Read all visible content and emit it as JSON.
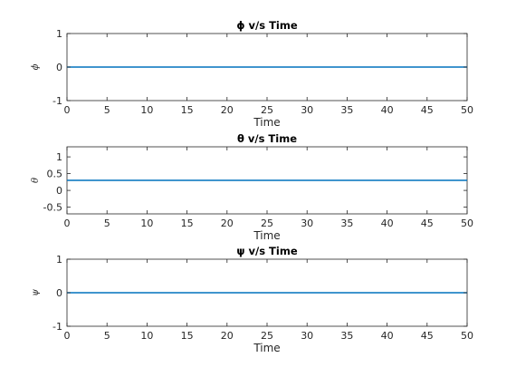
{
  "chart_data": [
    {
      "type": "line",
      "title": "ϕ v/s Time",
      "xlabel": "Time",
      "ylabel": "ϕ",
      "xlim": [
        0,
        50
      ],
      "ylim": [
        -1,
        1
      ],
      "xticks": [
        0,
        5,
        10,
        15,
        20,
        25,
        30,
        35,
        40,
        45,
        50
      ],
      "xtick_labels": [
        "0",
        "5",
        "10",
        "15",
        "20",
        "25",
        "30",
        "35",
        "40",
        "45",
        "50"
      ],
      "yticks": [
        -1,
        0,
        1
      ],
      "ytick_labels": [
        "-1",
        "0",
        "1"
      ],
      "grid": false,
      "series": [
        {
          "color": "#0072bd",
          "x": [
            0,
            50
          ],
          "y": [
            0,
            0
          ]
        }
      ]
    },
    {
      "type": "line",
      "title": "θ v/s Time",
      "xlabel": "Time",
      "ylabel": "θ",
      "xlim": [
        0,
        50
      ],
      "ylim": [
        -0.7,
        1.3
      ],
      "xticks": [
        0,
        5,
        10,
        15,
        20,
        25,
        30,
        35,
        40,
        45,
        50
      ],
      "xtick_labels": [
        "0",
        "5",
        "10",
        "15",
        "20",
        "25",
        "30",
        "35",
        "40",
        "45",
        "50"
      ],
      "yticks": [
        -0.5,
        0,
        0.5,
        1
      ],
      "ytick_labels": [
        "-0.5",
        "0",
        "0.5",
        "1"
      ],
      "grid": false,
      "series": [
        {
          "color": "#0072bd",
          "x": [
            0,
            50
          ],
          "y": [
            0.3,
            0.3
          ]
        }
      ]
    },
    {
      "type": "line",
      "title": "ψ v/s Time",
      "xlabel": "Time",
      "ylabel": "ψ",
      "xlim": [
        0,
        50
      ],
      "ylim": [
        -1,
        1
      ],
      "xticks": [
        0,
        5,
        10,
        15,
        20,
        25,
        30,
        35,
        40,
        45,
        50
      ],
      "xtick_labels": [
        "0",
        "5",
        "10",
        "15",
        "20",
        "25",
        "30",
        "35",
        "40",
        "45",
        "50"
      ],
      "yticks": [
        -1,
        0,
        1
      ],
      "ytick_labels": [
        "-1",
        "0",
        "1"
      ],
      "grid": false,
      "series": [
        {
          "color": "#0072bd",
          "x": [
            0,
            50
          ],
          "y": [
            0,
            0
          ]
        }
      ]
    }
  ]
}
